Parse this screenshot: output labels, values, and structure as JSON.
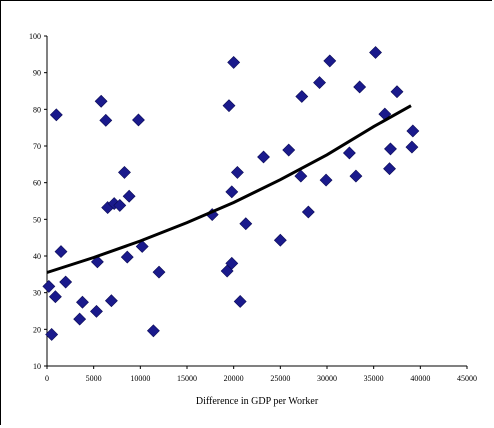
{
  "chart_data": {
    "type": "scatter",
    "title": "",
    "xlabel": "Difference in GDP per Worker",
    "ylabel": "",
    "xlim": [
      0,
      45000
    ],
    "ylim": [
      10,
      100
    ],
    "xticks": [
      0,
      5000,
      10000,
      15000,
      20000,
      25000,
      30000,
      35000,
      40000,
      45000
    ],
    "yticks": [
      10,
      20,
      30,
      40,
      50,
      60,
      70,
      80,
      90,
      100
    ],
    "grid": false,
    "legend": "none",
    "marker_color": "#1a1a8c",
    "trend_color": "#000000",
    "series": [
      {
        "name": "",
        "marker": "diamond",
        "points": [
          [
            200,
            31.7
          ],
          [
            500,
            18.6
          ],
          [
            900,
            28.9
          ],
          [
            1000,
            78.5
          ],
          [
            1500,
            41.2
          ],
          [
            2000,
            32.9
          ],
          [
            3500,
            22.8
          ],
          [
            3800,
            27.4
          ],
          [
            5300,
            24.9
          ],
          [
            5400,
            38.4
          ],
          [
            5800,
            82.2
          ],
          [
            6300,
            77.0
          ],
          [
            6500,
            53.2
          ],
          [
            6900,
            27.8
          ],
          [
            7200,
            54.3
          ],
          [
            7800,
            53.8
          ],
          [
            8300,
            62.8
          ],
          [
            8600,
            39.7
          ],
          [
            8800,
            56.3
          ],
          [
            9800,
            77.1
          ],
          [
            10200,
            42.6
          ],
          [
            11400,
            19.6
          ],
          [
            12000,
            35.6
          ],
          [
            17700,
            51.3
          ],
          [
            19300,
            35.9
          ],
          [
            19500,
            81.0
          ],
          [
            19800,
            38.0
          ],
          [
            19800,
            57.5
          ],
          [
            20000,
            92.8
          ],
          [
            20400,
            62.8
          ],
          [
            20700,
            27.6
          ],
          [
            21300,
            48.8
          ],
          [
            23200,
            67.0
          ],
          [
            25000,
            44.3
          ],
          [
            25900,
            68.9
          ],
          [
            27200,
            61.8
          ],
          [
            27300,
            83.5
          ],
          [
            28000,
            52.0
          ],
          [
            29200,
            87.3
          ],
          [
            29900,
            60.7
          ],
          [
            30300,
            93.2
          ],
          [
            32400,
            68.1
          ],
          [
            33100,
            61.8
          ],
          [
            33500,
            86.1
          ],
          [
            35200,
            95.5
          ],
          [
            36200,
            78.7
          ],
          [
            36700,
            63.8
          ],
          [
            36800,
            69.2
          ],
          [
            37500,
            84.8
          ],
          [
            39100,
            69.7
          ],
          [
            39200,
            74.1
          ]
        ]
      }
    ],
    "trendline": {
      "type": "exponential",
      "points": [
        [
          0,
          35.5
        ],
        [
          5000,
          39.6
        ],
        [
          10000,
          44.1
        ],
        [
          15000,
          49.1
        ],
        [
          20000,
          54.6
        ],
        [
          25000,
          60.8
        ],
        [
          30000,
          67.6
        ],
        [
          35000,
          75.3
        ],
        [
          39000,
          81.0
        ]
      ]
    }
  }
}
